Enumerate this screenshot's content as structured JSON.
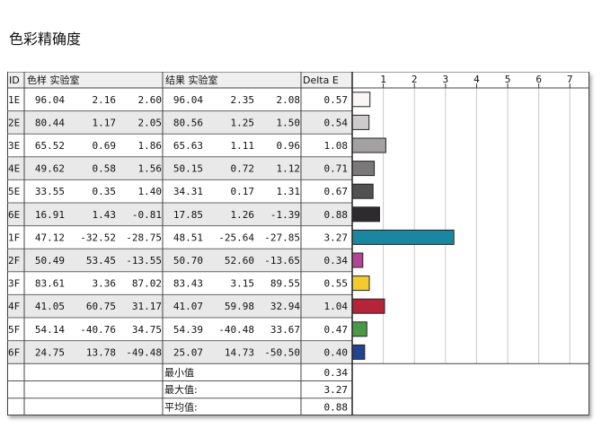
{
  "page": {
    "title": "色彩精确度"
  },
  "chart_data": {
    "type": "table",
    "columns": {
      "id": "ID",
      "sample": "色样 实验室",
      "result": "结果 实验室",
      "delta": "Delta E"
    },
    "axis_ticks": [
      "1",
      "2",
      "3",
      "4",
      "5",
      "6",
      "7"
    ],
    "axis_range": [
      0,
      7.6
    ],
    "rows": [
      {
        "id": "1E",
        "sample": [
          "96.04",
          "2.16",
          "2.60"
        ],
        "result": [
          "96.04",
          "2.35",
          "2.08"
        ],
        "delta": 0.57,
        "color": "#fbf6f6"
      },
      {
        "id": "2E",
        "sample": [
          "80.44",
          "1.17",
          "2.05"
        ],
        "result": [
          "80.56",
          "1.25",
          "1.50"
        ],
        "delta": 0.54,
        "color": "#cdcbcb"
      },
      {
        "id": "3E",
        "sample": [
          "65.52",
          "0.69",
          "1.86"
        ],
        "result": [
          "65.63",
          "1.11",
          "0.96"
        ],
        "delta": 1.08,
        "color": "#a3a1a1"
      },
      {
        "id": "4E",
        "sample": [
          "49.62",
          "0.58",
          "1.56"
        ],
        "result": [
          "50.15",
          "0.72",
          "1.12"
        ],
        "delta": 0.71,
        "color": "#7a7878"
      },
      {
        "id": "5E",
        "sample": [
          "33.55",
          "0.35",
          "1.40"
        ],
        "result": [
          "34.31",
          "0.17",
          "1.31"
        ],
        "delta": 0.67,
        "color": "#525050"
      },
      {
        "id": "6E",
        "sample": [
          "16.91",
          "1.43",
          "-0.81"
        ],
        "result": [
          "17.85",
          "1.26",
          "-1.39"
        ],
        "delta": 0.88,
        "color": "#2d2b2d"
      },
      {
        "id": "1F",
        "sample": [
          "47.12",
          "-32.52",
          "-28.75"
        ],
        "result": [
          "48.51",
          "-25.64",
          "-27.85"
        ],
        "delta": 3.27,
        "color": "#18879f"
      },
      {
        "id": "2F",
        "sample": [
          "50.49",
          "53.45",
          "-13.55"
        ],
        "result": [
          "50.70",
          "52.60",
          "-13.65"
        ],
        "delta": 0.34,
        "color": "#b54593"
      },
      {
        "id": "3F",
        "sample": [
          "83.61",
          "3.36",
          "87.02"
        ],
        "result": [
          "83.43",
          "3.15",
          "89.55"
        ],
        "delta": 0.55,
        "color": "#f2cc2e"
      },
      {
        "id": "4F",
        "sample": [
          "41.05",
          "60.75",
          "31.17"
        ],
        "result": [
          "41.07",
          "59.98",
          "32.94"
        ],
        "delta": 1.04,
        "color": "#b5253a"
      },
      {
        "id": "5F",
        "sample": [
          "54.14",
          "-40.76",
          "34.75"
        ],
        "result": [
          "54.39",
          "-40.48",
          "33.67"
        ],
        "delta": 0.47,
        "color": "#4a9a45"
      },
      {
        "id": "6F",
        "sample": [
          "24.75",
          "13.78",
          "-49.48"
        ],
        "result": [
          "25.07",
          "14.73",
          "-50.50"
        ],
        "delta": 0.4,
        "color": "#23438f"
      }
    ],
    "summary": [
      {
        "label": "最小值",
        "value": "0.34"
      },
      {
        "label": "最大值:",
        "value": "3.27"
      },
      {
        "label": "平均值:",
        "value": "0.88"
      }
    ]
  }
}
